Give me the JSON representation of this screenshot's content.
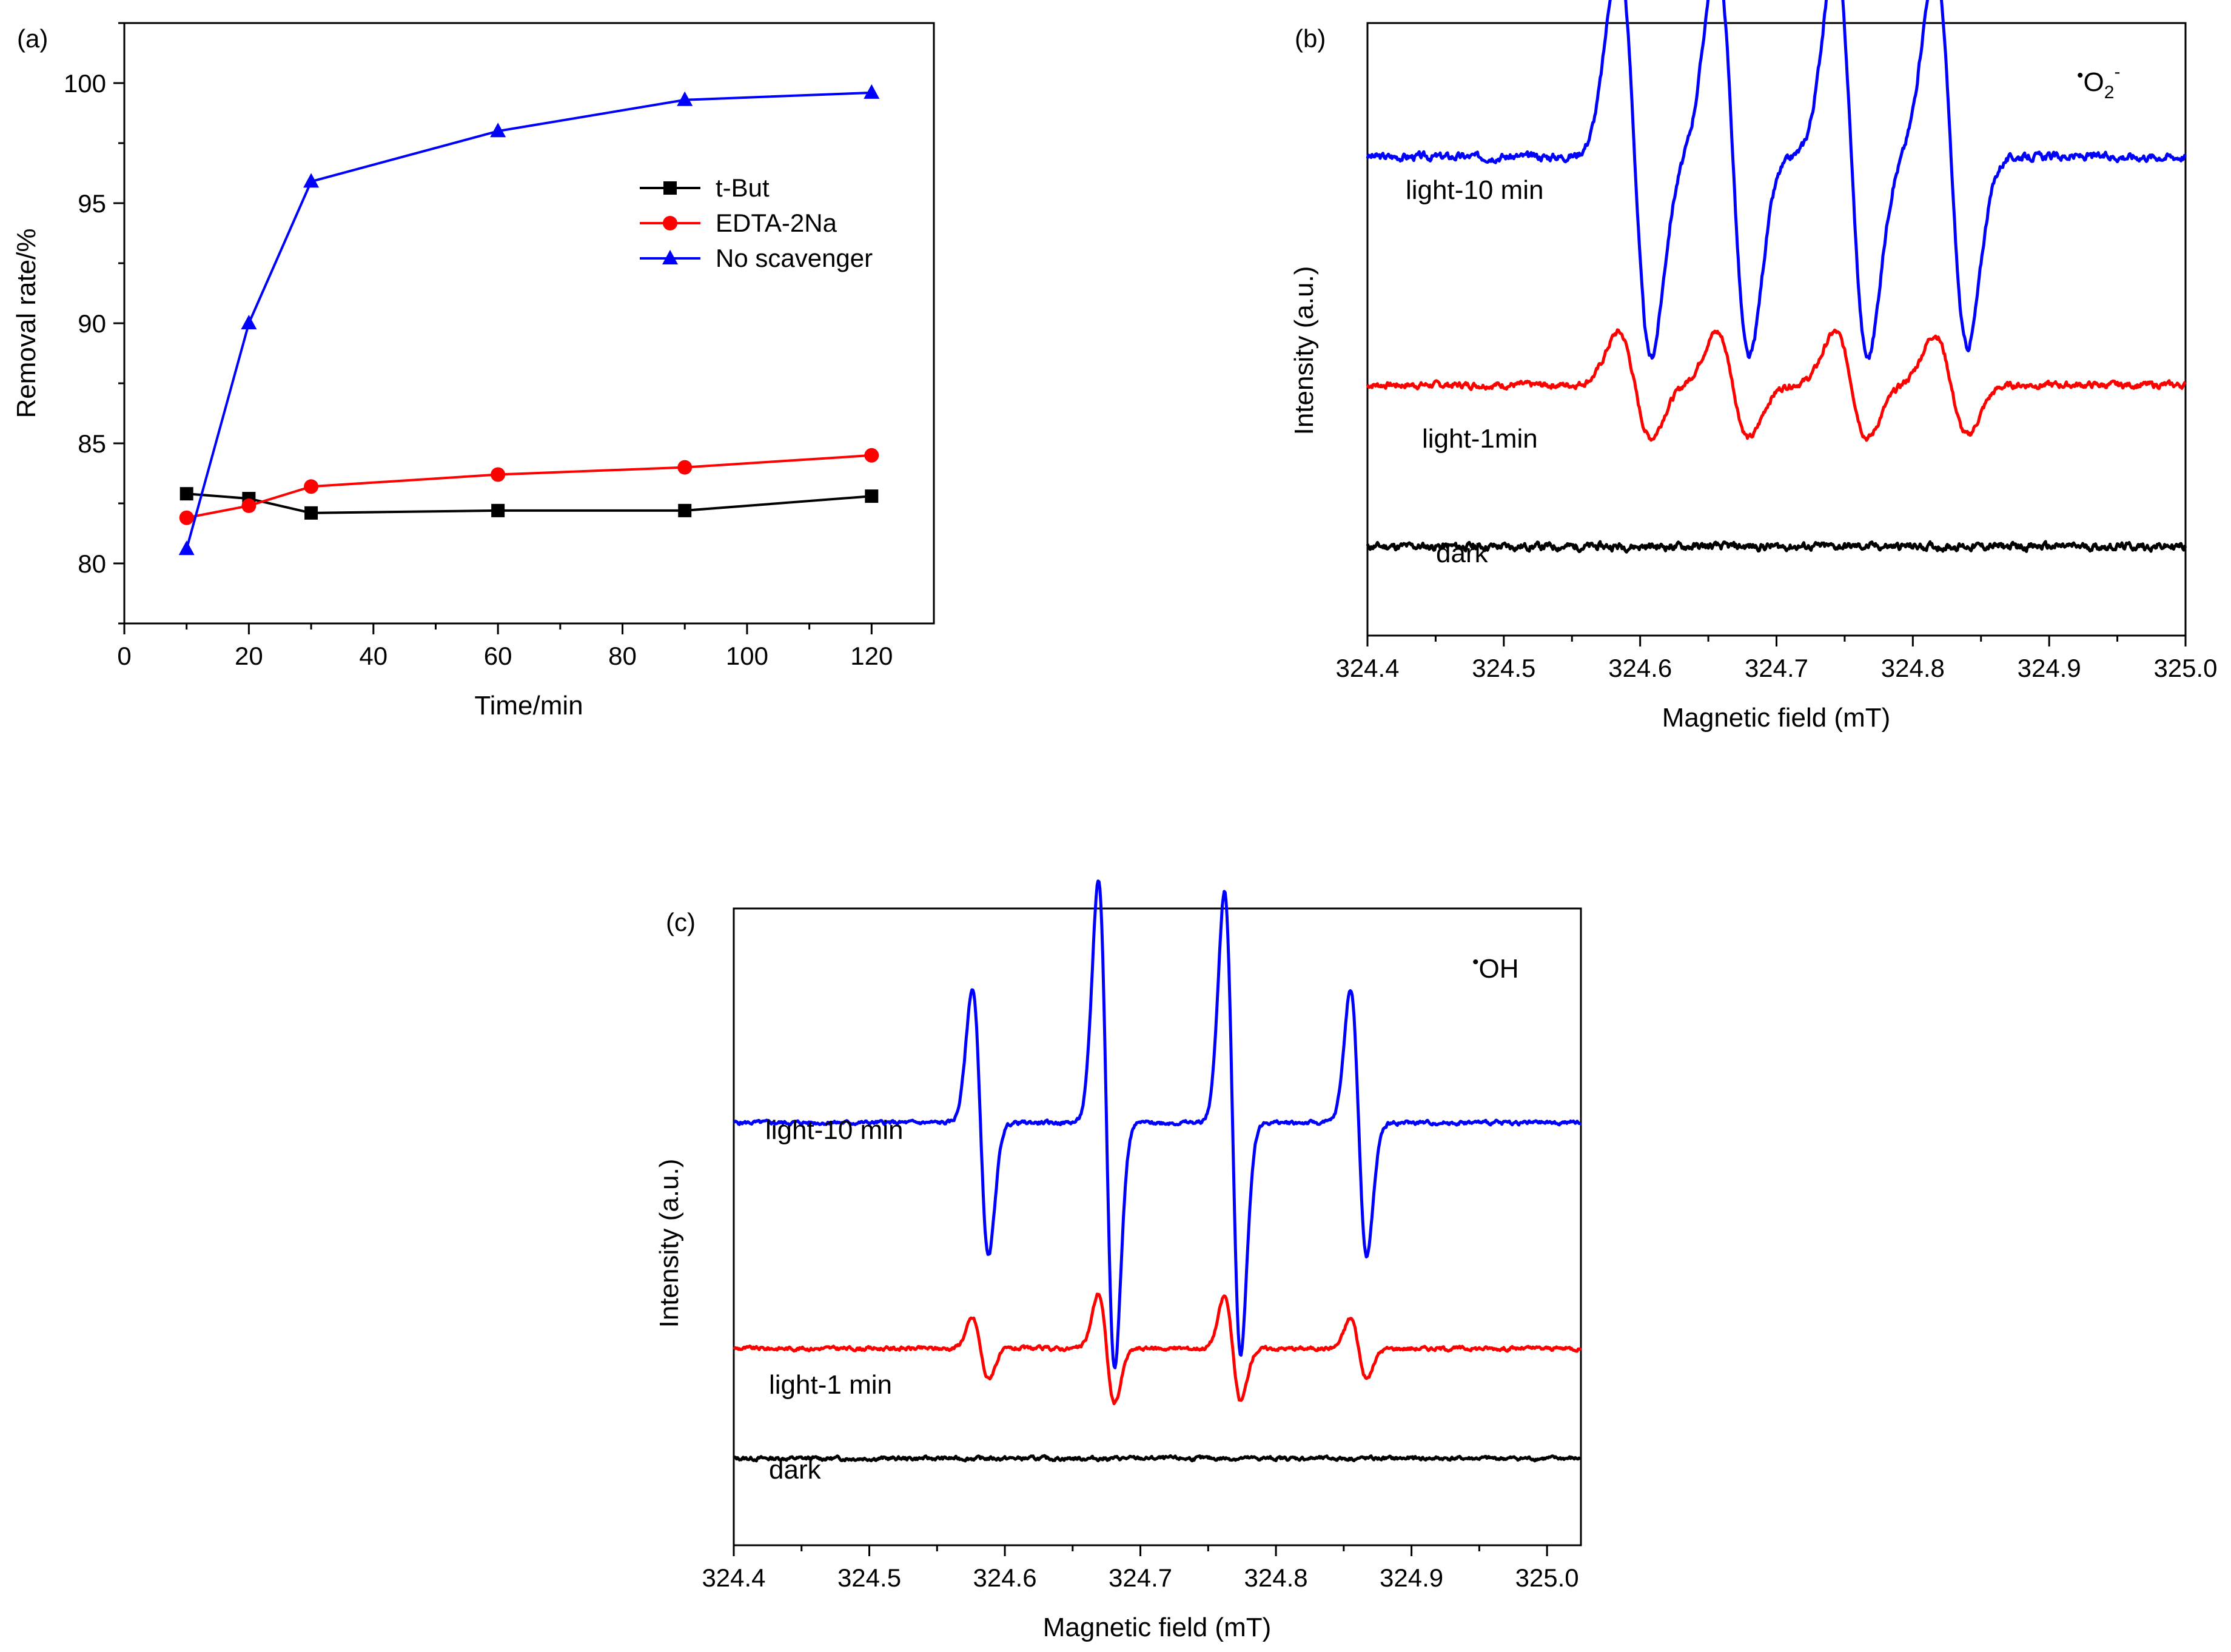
{
  "chart_data": [
    {
      "id": "a",
      "panel_label": "(a)",
      "type": "line",
      "xlabel": "Time/min",
      "ylabel": "Removal rate/%",
      "xlim": [
        0,
        130
      ],
      "ylim": [
        77.5,
        102.5
      ],
      "xticks": [
        0,
        20,
        40,
        60,
        80,
        100,
        120
      ],
      "xtick_labels": [
        "0",
        "20",
        "40",
        "60",
        "80",
        "100",
        "120"
      ],
      "yticks": [
        80,
        85,
        90,
        95,
        100
      ],
      "ytick_labels": [
        "80",
        "85",
        "90",
        "95",
        "100"
      ],
      "legend_position": "upper-right",
      "series": [
        {
          "name": "t-But",
          "color": "#000000",
          "marker": "square",
          "x": [
            10,
            20,
            30,
            60,
            90,
            120
          ],
          "y": [
            82.9,
            82.7,
            82.1,
            82.2,
            82.2,
            82.8
          ]
        },
        {
          "name": "EDTA-2Na",
          "color": "#ff0000",
          "marker": "circle",
          "x": [
            10,
            20,
            30,
            60,
            90,
            120
          ],
          "y": [
            81.9,
            82.4,
            83.2,
            83.7,
            84.0,
            84.5
          ]
        },
        {
          "name": "No scavenger",
          "color": "#0000ff",
          "marker": "triangle",
          "x": [
            10,
            20,
            30,
            60,
            90,
            120
          ],
          "y": [
            80.6,
            90.0,
            95.9,
            98.0,
            99.3,
            99.6
          ]
        }
      ]
    },
    {
      "id": "b",
      "panel_label": "(b)",
      "type": "line",
      "xlabel": "Magnetic field (mT)",
      "ylabel": "Intensity (a.u.)",
      "xlim": [
        324.4,
        325.0
      ],
      "xticks": [
        324.4,
        324.5,
        324.6,
        324.7,
        324.8,
        324.9,
        325.0
      ],
      "xtick_labels": [
        "324.4",
        "324.5",
        "324.6",
        "324.7",
        "324.8",
        "324.9",
        "325.0"
      ],
      "radical": {
        "dot": "•",
        "main": "O",
        "sub": "2",
        "sup": "-"
      },
      "line_peaks": [
        324.596,
        324.668,
        324.755,
        324.828
      ],
      "line_amp": [
        1.0,
        1.0,
        1.0,
        0.95
      ],
      "line_width_mT": 0.012,
      "series": [
        {
          "name": "light-10 min",
          "label": "light-10 min",
          "color": "#0000ff",
          "baseline": 8.6,
          "scale": 3.6,
          "noise": 0.12,
          "seed": 3
        },
        {
          "name": "light-1min",
          "label": "light-1min",
          "color": "#ff0000",
          "baseline": 4.5,
          "scale": 0.95,
          "noise": 0.1,
          "seed": 7
        },
        {
          "name": "dark",
          "label": "dark",
          "color": "#000000",
          "baseline": 1.6,
          "scale": 0.0,
          "noise": 0.12,
          "seed": 11
        }
      ]
    },
    {
      "id": "c",
      "panel_label": "(c)",
      "type": "line",
      "xlabel": "Magnetic field (mT)",
      "ylabel": "Intensity (a.u.)",
      "xlim": [
        324.4,
        325.025
      ],
      "xticks": [
        324.4,
        324.5,
        324.6,
        324.7,
        324.8,
        324.9,
        325.0
      ],
      "xtick_labels": [
        "324.4",
        "324.5",
        "324.6",
        "324.7",
        "324.8",
        "324.9",
        "325.0"
      ],
      "radical": {
        "dot": "•",
        "main": "OH",
        "sub": "",
        "sup": ""
      },
      "line_peaks": [
        324.582,
        324.675,
        324.768,
        324.861
      ],
      "line_amp": [
        0.55,
        1.0,
        0.95,
        0.55
      ],
      "line_width_mT": 0.006,
      "series": [
        {
          "name": "light-10 min",
          "label": "light-10 min",
          "color": "#0000ff",
          "baseline": 7.3,
          "scale": 4.2,
          "noise": 0.06,
          "seed": 5
        },
        {
          "name": "light-1 min",
          "label": "light-1 min",
          "color": "#ff0000",
          "baseline": 3.4,
          "scale": 0.95,
          "noise": 0.06,
          "seed": 9
        },
        {
          "name": "dark",
          "label": "dark",
          "color": "#000000",
          "baseline": 1.5,
          "scale": 0.0,
          "noise": 0.06,
          "seed": 13
        }
      ]
    }
  ]
}
